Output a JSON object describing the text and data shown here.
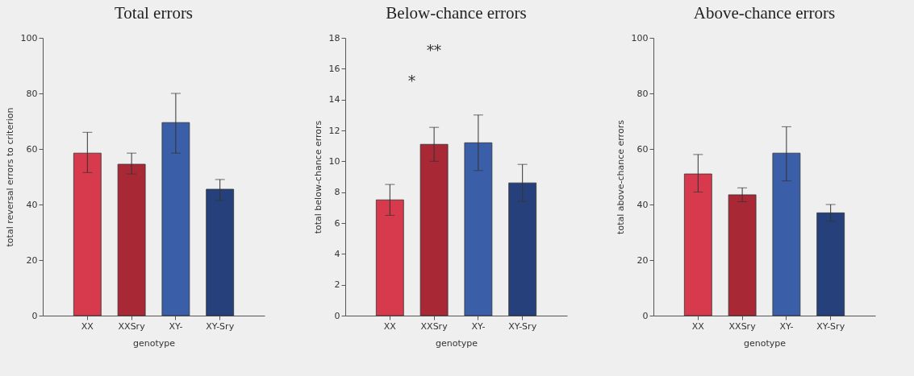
{
  "chart_data": [
    {
      "type": "bar",
      "title": "Total errors",
      "xlabel": "genotype",
      "ylabel": "total reversal errors to criterion",
      "categories": [
        "XX",
        "XXSry",
        "XY-",
        "XY-Sry"
      ],
      "values": [
        58.5,
        54.5,
        69.5,
        45.5
      ],
      "colors": [
        "#d63a4c",
        "#a82836",
        "#3a5ea8",
        "#25407a"
      ],
      "errors": [
        [
          51.5,
          66
        ],
        [
          51,
          58.5
        ],
        [
          58.5,
          80
        ],
        [
          41.5,
          49
        ]
      ],
      "ylim": [
        0,
        100
      ],
      "yticks": [
        0,
        20,
        40,
        60,
        80,
        100
      ]
    },
    {
      "type": "bar",
      "title": "Below-chance errors",
      "xlabel": "genotype",
      "ylabel": "total below-chance errors",
      "categories": [
        "XX",
        "XXSry",
        "XY-",
        "XY-Sry"
      ],
      "values": [
        7.5,
        11.1,
        11.2,
        8.6
      ],
      "colors": [
        "#d63a4c",
        "#a82836",
        "#3a5ea8",
        "#25407a"
      ],
      "errors": [
        [
          6.5,
          8.5
        ],
        [
          10,
          12.2
        ],
        [
          9.4,
          13
        ],
        [
          7.4,
          9.8
        ]
      ],
      "ylim": [
        0,
        18
      ],
      "yticks": [
        0,
        2,
        4,
        6,
        8,
        10,
        12,
        14,
        16,
        18
      ],
      "annotations": [
        "*",
        "**"
      ]
    },
    {
      "type": "bar",
      "title": "Above-chance errors",
      "xlabel": "genotype",
      "ylabel": "total above-chance errors",
      "categories": [
        "XX",
        "XXSry",
        "XY-",
        "XY-Sry"
      ],
      "values": [
        51,
        43.5,
        58.5,
        37
      ],
      "colors": [
        "#d63a4c",
        "#a82836",
        "#3a5ea8",
        "#25407a"
      ],
      "errors": [
        [
          44.5,
          58
        ],
        [
          41,
          46
        ],
        [
          48.5,
          68
        ],
        [
          34,
          40
        ]
      ],
      "ylim": [
        0,
        100
      ],
      "yticks": [
        0,
        20,
        40,
        60,
        80,
        100
      ]
    }
  ]
}
